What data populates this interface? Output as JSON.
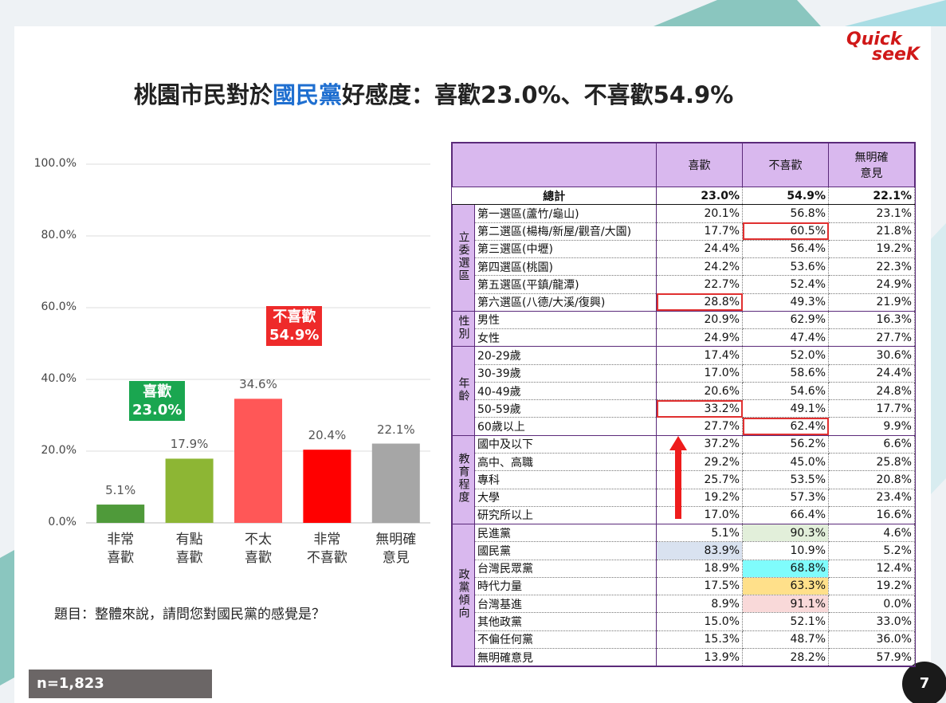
{
  "title_parts": [
    "桃園市民對於",
    "國民黨",
    "好感度：喜歡23.0%、不喜歡54.9%"
  ],
  "logo": [
    "Quick",
    "seeK"
  ],
  "chart_data": {
    "type": "bar",
    "categories": [
      "非常\n喜歡",
      "有點\n喜歡",
      "不太\n喜歡",
      "非常\n不喜歡",
      "無明確\n意見"
    ],
    "values": [
      5.1,
      17.9,
      34.6,
      20.4,
      22.1
    ],
    "value_labels": [
      "5.1%",
      "17.9%",
      "34.6%",
      "20.4%",
      "22.1%"
    ],
    "colors": [
      "#4f9a3a",
      "#8db634",
      "#ff5757",
      "#ff0000",
      "#a6a6a6"
    ],
    "ylim": [
      0,
      100
    ],
    "yticks": [
      {
        "value": 0,
        "label": "0.0%"
      },
      {
        "value": 20,
        "label": "20.0%"
      },
      {
        "value": 40,
        "label": "40.0%"
      },
      {
        "value": 60,
        "label": "60.0%"
      },
      {
        "value": 80,
        "label": "80.0%"
      },
      {
        "value": 100,
        "label": "100.0%"
      }
    ],
    "grid": true,
    "annotations": [
      {
        "text": "喜歡\n23.0%",
        "color": "#1aa650"
      },
      {
        "text": "不喜歡\n54.9%",
        "color": "#ee2a2a"
      }
    ]
  },
  "question": "題目：整體來說，請問您對國民黨的感覺是？",
  "sample": "n=1,823",
  "page_number": "7",
  "table": {
    "header": [
      "喜歡",
      "不喜歡",
      "無明確\n意見"
    ],
    "total": {
      "label": "總計",
      "cells": [
        "23.0%",
        "54.9%",
        "22.1%"
      ]
    },
    "groups": [
      {
        "label": "立委選區",
        "rows": [
          {
            "label": "第一選區(蘆竹/龜山)",
            "cells": [
              "20.1%",
              "56.8%",
              "23.1%"
            ]
          },
          {
            "label": "第二選區(楊梅/新屋/觀音/大園)",
            "cells": [
              "17.7%",
              "60.5%",
              "21.8%"
            ]
          },
          {
            "label": "第三選區(中壢)",
            "cells": [
              "24.4%",
              "56.4%",
              "19.2%"
            ]
          },
          {
            "label": "第四選區(桃園)",
            "cells": [
              "24.2%",
              "53.6%",
              "22.3%"
            ]
          },
          {
            "label": "第五選區(平鎮/龍潭)",
            "cells": [
              "22.7%",
              "52.4%",
              "24.9%"
            ]
          },
          {
            "label": "第六選區(八德/大溪/復興)",
            "cells": [
              "28.8%",
              "49.3%",
              "21.9%"
            ]
          }
        ]
      },
      {
        "label": "性別",
        "rows": [
          {
            "label": "男性",
            "cells": [
              "20.9%",
              "62.9%",
              "16.3%"
            ]
          },
          {
            "label": "女性",
            "cells": [
              "24.9%",
              "47.4%",
              "27.7%"
            ]
          }
        ]
      },
      {
        "label": "年齡",
        "rows": [
          {
            "label": "20-29歲",
            "cells": [
              "17.4%",
              "52.0%",
              "30.6%"
            ]
          },
          {
            "label": "30-39歲",
            "cells": [
              "17.0%",
              "58.6%",
              "24.4%"
            ]
          },
          {
            "label": "40-49歲",
            "cells": [
              "20.6%",
              "54.6%",
              "24.8%"
            ]
          },
          {
            "label": "50-59歲",
            "cells": [
              "33.2%",
              "49.1%",
              "17.7%"
            ]
          },
          {
            "label": "60歲以上",
            "cells": [
              "27.7%",
              "62.4%",
              "9.9%"
            ]
          }
        ]
      },
      {
        "label": "教育程度",
        "rows": [
          {
            "label": "國中及以下",
            "cells": [
              "37.2%",
              "56.2%",
              "6.6%"
            ]
          },
          {
            "label": "高中、高職",
            "cells": [
              "29.2%",
              "45.0%",
              "25.8%"
            ]
          },
          {
            "label": "專科",
            "cells": [
              "25.7%",
              "53.5%",
              "20.8%"
            ]
          },
          {
            "label": "大學",
            "cells": [
              "19.2%",
              "57.3%",
              "23.4%"
            ]
          },
          {
            "label": "研究所以上",
            "cells": [
              "17.0%",
              "66.4%",
              "16.6%"
            ]
          }
        ]
      },
      {
        "label": "政黨傾向",
        "rows": [
          {
            "label": "民進黨",
            "cells": [
              "5.1%",
              "90.3%",
              "4.6%"
            ]
          },
          {
            "label": "國民黨",
            "cells": [
              "83.9%",
              "10.9%",
              "5.2%"
            ]
          },
          {
            "label": "台灣民眾黨",
            "cells": [
              "18.9%",
              "68.8%",
              "12.4%"
            ]
          },
          {
            "label": "時代力量",
            "cells": [
              "17.5%",
              "63.3%",
              "19.2%"
            ]
          },
          {
            "label": "台灣基進",
            "cells": [
              "8.9%",
              "91.1%",
              "0.0%"
            ]
          },
          {
            "label": "其他政黨",
            "cells": [
              "15.0%",
              "52.1%",
              "33.0%"
            ]
          },
          {
            "label": "不偏任何黨",
            "cells": [
              "15.3%",
              "48.7%",
              "36.0%"
            ]
          },
          {
            "label": "無明確意見",
            "cells": [
              "13.9%",
              "28.2%",
              "57.9%"
            ]
          }
        ]
      }
    ]
  }
}
